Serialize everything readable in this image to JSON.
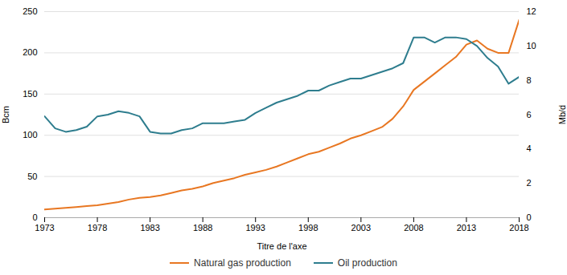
{
  "chart_data": {
    "type": "line",
    "xlabel": "Titre de l'axe",
    "ylabel": "Bcm",
    "y2label": "Mb/d",
    "x": [
      1973,
      1974,
      1975,
      1976,
      1977,
      1978,
      1979,
      1980,
      1981,
      1982,
      1983,
      1984,
      1985,
      1986,
      1987,
      1988,
      1989,
      1990,
      1991,
      1992,
      1993,
      1994,
      1995,
      1996,
      1997,
      1998,
      1999,
      2000,
      2001,
      2002,
      2003,
      2004,
      2005,
      2006,
      2007,
      2008,
      2009,
      2010,
      2011,
      2012,
      2013,
      2014,
      2015,
      2016,
      2017,
      2018
    ],
    "series": [
      {
        "name": "Natural gas production",
        "color": "#E87722",
        "values": [
          10,
          11,
          12,
          13,
          14,
          15,
          17,
          19,
          22,
          24,
          25,
          27,
          30,
          33,
          35,
          38,
          42,
          45,
          48,
          52,
          55,
          58,
          62,
          67,
          72,
          77,
          80,
          85,
          90,
          96,
          100,
          105,
          110,
          120,
          135,
          155,
          165,
          175,
          185,
          195,
          210,
          215,
          205,
          200,
          200,
          240
        ]
      },
      {
        "name": "Oil production",
        "color": "#2E7D8E",
        "axis": "y2",
        "values": [
          5.9,
          5.2,
          5.0,
          5.1,
          5.3,
          5.9,
          6.0,
          6.2,
          6.1,
          5.9,
          5.0,
          4.9,
          4.9,
          5.1,
          5.2,
          5.5,
          5.5,
          5.5,
          5.6,
          5.7,
          6.1,
          6.4,
          6.7,
          6.9,
          7.1,
          7.4,
          7.4,
          7.7,
          7.9,
          8.1,
          8.1,
          8.3,
          8.5,
          8.7,
          9.0,
          10.5,
          10.5,
          10.2,
          10.5,
          10.5,
          10.4,
          10.0,
          9.3,
          8.8,
          7.8,
          8.2
        ]
      }
    ],
    "xlim": [
      1973,
      2018
    ],
    "xticks": [
      1973,
      1978,
      1983,
      1988,
      1993,
      1998,
      2003,
      2008,
      2013,
      2018
    ],
    "ylim": [
      0,
      250
    ],
    "yticks": [
      0,
      50,
      100,
      150,
      200,
      250
    ],
    "y2lim": [
      0,
      12
    ],
    "y2ticks": [
      0,
      2,
      4,
      6,
      8,
      10,
      12
    ],
    "grid": true,
    "legend": "bottom"
  }
}
